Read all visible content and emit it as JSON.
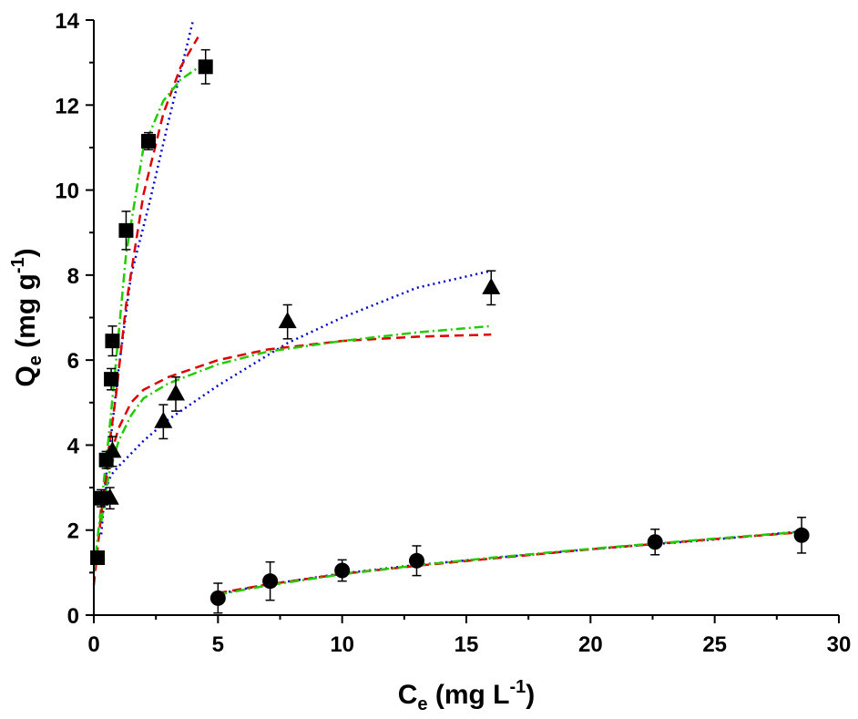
{
  "chart_data": {
    "type": "scatter",
    "x_axis": {
      "label_main": "C",
      "label_sub": "e",
      "label_unit": " (mg L",
      "label_sup": "-1",
      "label_close": ")",
      "min": 0,
      "max": 30,
      "ticks": [
        0,
        5,
        10,
        15,
        20,
        25,
        30
      ]
    },
    "y_axis": {
      "label_main": "Q",
      "label_sub": "e",
      "label_unit": " (mg g",
      "label_sup": "-1",
      "label_close": ")",
      "min": 0,
      "max": 14,
      "ticks": [
        0,
        2,
        4,
        6,
        8,
        10,
        12,
        14
      ]
    },
    "grid": false,
    "legend": "none",
    "series": [
      {
        "marker": "square",
        "points": [
          {
            "x": 0.15,
            "y": 1.35,
            "err": 0.15
          },
          {
            "x": 0.3,
            "y": 2.75,
            "err": 0.2
          },
          {
            "x": 0.5,
            "y": 3.65,
            "err": 0.2
          },
          {
            "x": 0.7,
            "y": 5.55,
            "err": 0.25
          },
          {
            "x": 0.75,
            "y": 6.45,
            "err": 0.35
          },
          {
            "x": 1.3,
            "y": 9.05,
            "err": 0.45
          },
          {
            "x": 2.2,
            "y": 11.15,
            "err": 0.2
          },
          {
            "x": 4.5,
            "y": 12.9,
            "err": 0.4
          }
        ]
      },
      {
        "marker": "triangle",
        "points": [
          {
            "x": 0.65,
            "y": 2.75,
            "err": 0.25
          },
          {
            "x": 0.75,
            "y": 3.85,
            "err": 0.35
          },
          {
            "x": 2.8,
            "y": 4.55,
            "err": 0.4
          },
          {
            "x": 3.3,
            "y": 5.2,
            "err": 0.4
          },
          {
            "x": 7.8,
            "y": 6.9,
            "err": 0.4
          },
          {
            "x": 16.0,
            "y": 7.7,
            "err": 0.4
          }
        ]
      },
      {
        "marker": "circle",
        "points": [
          {
            "x": 5.0,
            "y": 0.4,
            "err": 0.35
          },
          {
            "x": 7.1,
            "y": 0.8,
            "err": 0.45
          },
          {
            "x": 10.0,
            "y": 1.05,
            "err": 0.25
          },
          {
            "x": 13.0,
            "y": 1.28,
            "err": 0.35
          },
          {
            "x": 22.6,
            "y": 1.72,
            "err": 0.3
          },
          {
            "x": 28.5,
            "y": 1.88,
            "err": 0.42
          }
        ]
      }
    ],
    "fits": [
      {
        "color": "#0000cc",
        "style": "dotted",
        "points": [
          [
            0.3,
            1.9
          ],
          [
            0.5,
            3.3
          ],
          [
            0.75,
            4.5
          ],
          [
            1.0,
            5.8
          ],
          [
            1.5,
            8.0
          ],
          [
            2.2,
            9.6
          ],
          [
            3.0,
            11.6
          ],
          [
            4.0,
            14.0
          ]
        ]
      },
      {
        "color": "#dd0000",
        "style": "dashed",
        "points": [
          [
            0.0,
            0.7
          ],
          [
            0.3,
            2.4
          ],
          [
            0.6,
            3.9
          ],
          [
            0.9,
            5.2
          ],
          [
            1.3,
            7.3
          ],
          [
            2.0,
            9.9
          ],
          [
            2.8,
            11.8
          ],
          [
            3.5,
            12.9
          ],
          [
            4.2,
            13.6
          ]
        ]
      },
      {
        "color": "#22cc00",
        "style": "dashdot",
        "points": [
          [
            0.0,
            1.0
          ],
          [
            0.3,
            2.6
          ],
          [
            0.6,
            4.2
          ],
          [
            0.9,
            6.0
          ],
          [
            1.3,
            8.5
          ],
          [
            2.0,
            11.0
          ],
          [
            2.8,
            12.1
          ],
          [
            3.5,
            12.6
          ],
          [
            4.5,
            13.0
          ]
        ]
      },
      {
        "color": "#0000cc",
        "style": "dotted",
        "points": [
          [
            0.3,
            2.6
          ],
          [
            0.5,
            3.0
          ],
          [
            0.7,
            3.3
          ],
          [
            1.0,
            3.5
          ],
          [
            2.0,
            4.1
          ],
          [
            3.0,
            4.6
          ],
          [
            5.0,
            5.4
          ],
          [
            7.8,
            6.4
          ],
          [
            10.0,
            7.0
          ],
          [
            13.0,
            7.7
          ],
          [
            16.0,
            8.1
          ]
        ]
      },
      {
        "color": "#dd0000",
        "style": "dashed",
        "points": [
          [
            0.3,
            2.4
          ],
          [
            0.6,
            3.6
          ],
          [
            1.0,
            4.4
          ],
          [
            1.5,
            5.0
          ],
          [
            2.0,
            5.3
          ],
          [
            3.0,
            5.6
          ],
          [
            5.0,
            6.0
          ],
          [
            7.0,
            6.25
          ],
          [
            10.0,
            6.45
          ],
          [
            13.0,
            6.55
          ],
          [
            16.0,
            6.6
          ]
        ]
      },
      {
        "color": "#22cc00",
        "style": "dashdot",
        "points": [
          [
            0.3,
            2.2
          ],
          [
            0.6,
            3.3
          ],
          [
            1.0,
            4.1
          ],
          [
            1.5,
            4.7
          ],
          [
            2.0,
            5.1
          ],
          [
            3.0,
            5.45
          ],
          [
            5.0,
            5.9
          ],
          [
            7.0,
            6.2
          ],
          [
            10.0,
            6.45
          ],
          [
            13.0,
            6.65
          ],
          [
            16.0,
            6.8
          ]
        ]
      },
      {
        "color": "#0000cc",
        "style": "dotted",
        "points": [
          [
            5.0,
            0.5
          ],
          [
            7.0,
            0.72
          ],
          [
            10.0,
            0.98
          ],
          [
            13.0,
            1.18
          ],
          [
            16.0,
            1.34
          ],
          [
            20.0,
            1.55
          ],
          [
            25.0,
            1.78
          ],
          [
            28.5,
            1.97
          ]
        ]
      },
      {
        "color": "#dd0000",
        "style": "dashed",
        "points": [
          [
            5.0,
            0.52
          ],
          [
            7.0,
            0.72
          ],
          [
            10.0,
            0.97
          ],
          [
            13.0,
            1.16
          ],
          [
            16.0,
            1.33
          ],
          [
            20.0,
            1.55
          ],
          [
            25.0,
            1.79
          ],
          [
            28.5,
            1.95
          ]
        ]
      },
      {
        "color": "#22cc00",
        "style": "dashdot",
        "points": [
          [
            5.0,
            0.48
          ],
          [
            7.0,
            0.7
          ],
          [
            10.0,
            0.96
          ],
          [
            13.0,
            1.17
          ],
          [
            16.0,
            1.35
          ],
          [
            20.0,
            1.56
          ],
          [
            25.0,
            1.8
          ],
          [
            28.5,
            1.96
          ]
        ]
      }
    ]
  }
}
